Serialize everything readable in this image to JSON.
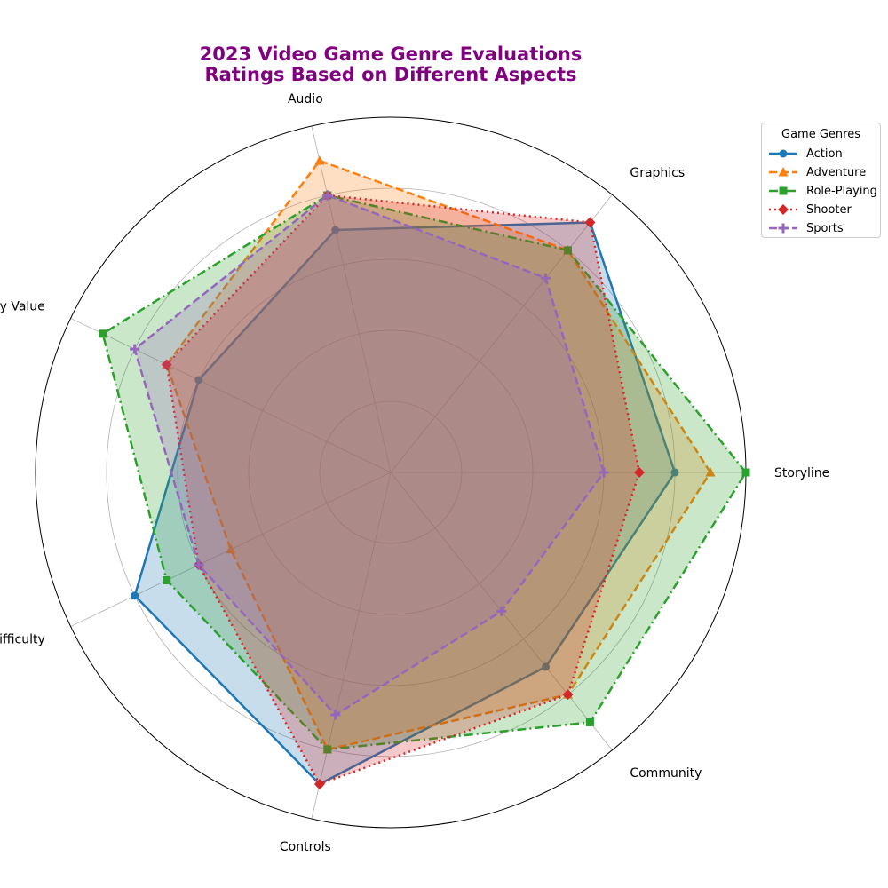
{
  "chart_data": {
    "type": "radar",
    "title_line1": "2023 Video Game Genre Evaluations",
    "title_line2": "Ratings Based on Different Aspects",
    "axes": [
      "Storyline",
      "Graphics",
      "Audio",
      "Replay Value",
      "Difficulty",
      "Controls",
      "Community"
    ],
    "rmax": 10,
    "grid_rings": [
      2,
      4,
      6,
      8
    ],
    "legend_title": "Game Genres",
    "legend_position": "upper-right, outside plot",
    "series": [
      {
        "name": "Action",
        "color": "#1f77b4",
        "linestyle": "solid",
        "marker": "circle",
        "values": [
          8,
          9,
          7,
          6,
          8,
          9,
          7
        ]
      },
      {
        "name": "Adventure",
        "color": "#ff7f0e",
        "linestyle": "dashed",
        "marker": "triangle",
        "values": [
          9,
          8,
          9,
          7,
          5,
          8,
          8
        ]
      },
      {
        "name": "Role-Playing",
        "color": "#2ca02c",
        "linestyle": "dashdot",
        "marker": "square",
        "values": [
          10,
          8,
          8,
          9,
          7,
          8,
          9
        ]
      },
      {
        "name": "Shooter",
        "color": "#d62728",
        "linestyle": "dotted",
        "marker": "diamond",
        "values": [
          7,
          9,
          8,
          7,
          6,
          9,
          8
        ]
      },
      {
        "name": "Sports",
        "color": "#9467bd",
        "linestyle": "dashed",
        "marker": "plus",
        "values": [
          6,
          7,
          8,
          8,
          6,
          7,
          5
        ]
      }
    ]
  }
}
